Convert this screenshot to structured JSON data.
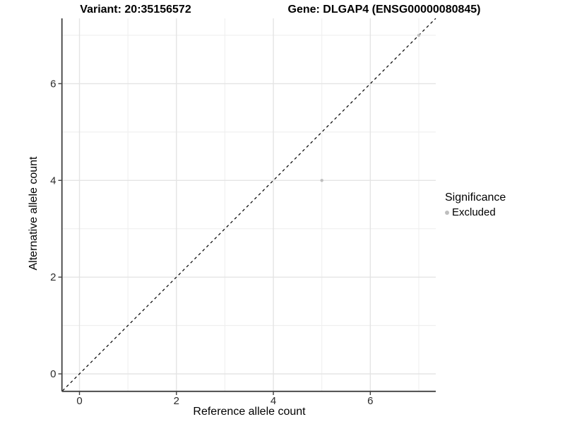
{
  "title": {
    "variant": "Variant: 20:35156572",
    "gene": "Gene: DLGAP4 (ENSG00000080845)"
  },
  "chart_data": {
    "type": "scatter",
    "title": "Variant: 20:35156572   Gene: DLGAP4 (ENSG00000080845)",
    "xlabel": "Reference allele count",
    "ylabel": "Alternative allele count",
    "xlim": [
      -0.35,
      7.35
    ],
    "ylim": [
      -0.35,
      7.35
    ],
    "x_major_ticks": [
      0,
      2,
      4,
      6
    ],
    "y_major_ticks": [
      0,
      2,
      4,
      6
    ],
    "x_minor_ticks": [
      1,
      3,
      5,
      7
    ],
    "y_minor_ticks": [
      1,
      3,
      5,
      7
    ],
    "grid": "major+minor",
    "points": [
      {
        "x": 5,
        "y": 4,
        "series": "Excluded"
      },
      {
        "x": 7,
        "y": 7,
        "series": "Excluded"
      }
    ],
    "identity_line": {
      "style": "dashed",
      "slope": 1,
      "intercept": 0
    },
    "legend": {
      "position": "right",
      "title": "Significance",
      "items": [
        {
          "label": "Excluded",
          "color": "#bebebe"
        }
      ]
    },
    "colors": {
      "point": "#bebebe",
      "dashed_line": "#000000",
      "grid_major": "#e4e4e4",
      "grid_minor": "#efefef",
      "axis_line": "#404040",
      "tick": "#404040",
      "tick_label": "#2b2b2b",
      "background": "#ffffff"
    }
  }
}
